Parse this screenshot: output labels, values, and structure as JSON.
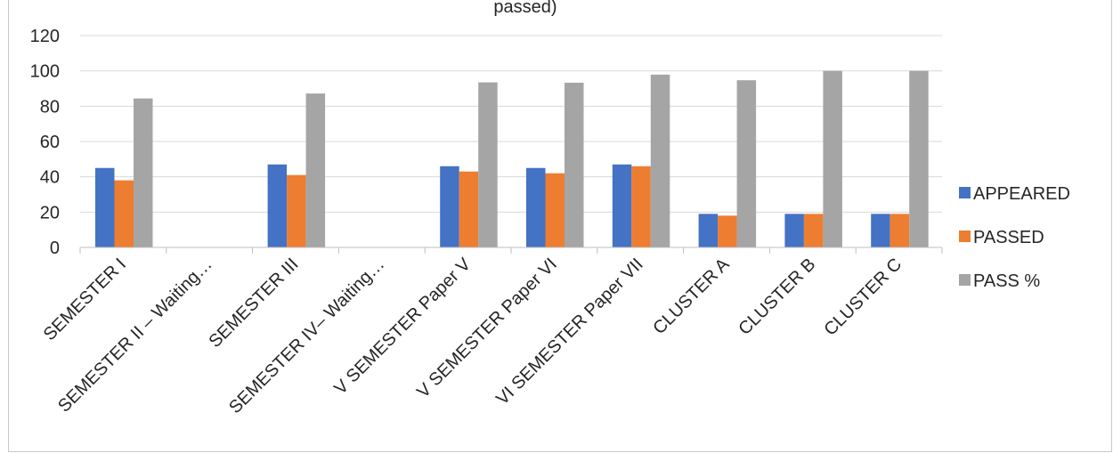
{
  "chart_data": {
    "type": "bar",
    "title": "passed)",
    "xlabel": "",
    "ylabel": "",
    "ylim": [
      0,
      120
    ],
    "yticks": [
      0,
      20,
      40,
      60,
      80,
      100,
      120
    ],
    "grid": true,
    "legend_position": "right",
    "categories": [
      "SEMESTER  I",
      "SEMESTER II – Waiting…",
      "SEMESTER  III",
      "SEMESTER  IV– Waiting…",
      "V SEMESTER  Paper V",
      "V SEMESTER  Paper VI",
      "VI SEMESTER  Paper VII",
      "CLUSTER  A",
      "CLUSTER  B",
      "CLUSTER  C"
    ],
    "series": [
      {
        "name": "APPEARED",
        "color": "#4472c4",
        "values": [
          45,
          null,
          47,
          null,
          46,
          45,
          47,
          19,
          19,
          19
        ]
      },
      {
        "name": "PASSED",
        "color": "#ed7d31",
        "values": [
          38,
          null,
          41,
          null,
          43,
          42,
          46,
          18,
          19,
          19
        ]
      },
      {
        "name": "PASS %",
        "color": "#a5a5a5",
        "values": [
          84.4,
          null,
          87.2,
          null,
          93.5,
          93.3,
          97.9,
          94.7,
          100,
          100
        ]
      }
    ]
  },
  "colors": {
    "grid": "#d9d9d9",
    "axis": "#bfbfbf",
    "text": "#262626"
  }
}
